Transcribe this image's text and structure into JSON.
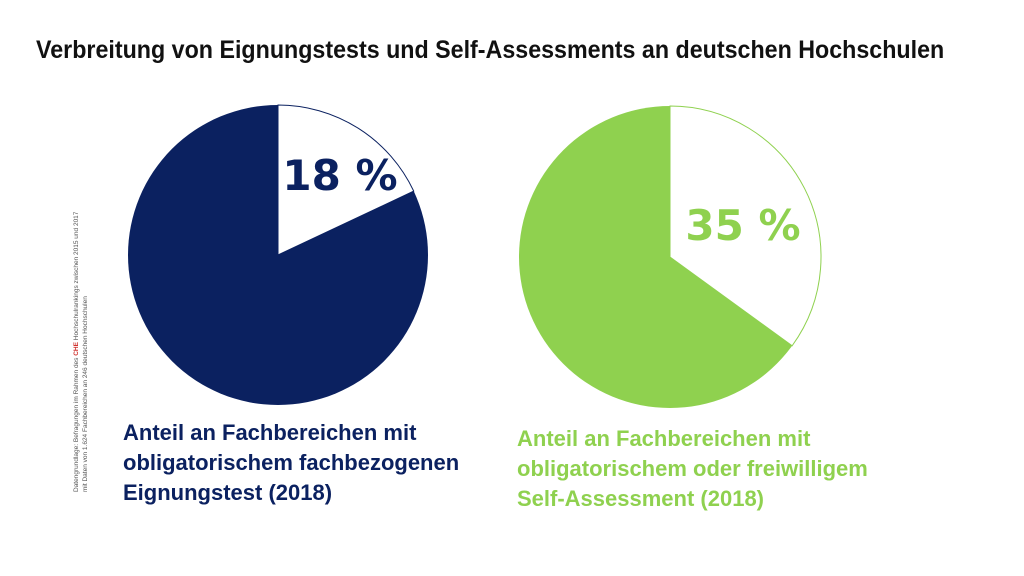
{
  "title": "Verbreitung von Eignungstests und Self-Assessments an deutschen Hochschulen",
  "source": {
    "line1_pre": "Datengrundlage: Befragungen im Rahmen des ",
    "line1_brand": "CHE",
    "line1_post": " Hochschulrankings zwischen 2015 und 2017",
    "line2": "mit Daten von 1.624 Fachbereichen an 246 deutschen Hochschulen"
  },
  "colors": {
    "navy": "#0b2160",
    "green": "#8fd14f",
    "white": "#ffffff"
  },
  "chart_data": [
    {
      "type": "pie",
      "value_percent": 18,
      "label": "18 %",
      "caption": [
        "Anteil an Fachbereichen mit",
        "obligatorischem fachbezogenen",
        "Eignungstest (2018)"
      ]
    },
    {
      "type": "pie",
      "value_percent": 35,
      "label": "35 %",
      "caption": [
        "Anteil an Fachbereichen mit",
        "obligatorischem oder freiwilligem",
        "Self-Assessment (2018)"
      ]
    }
  ]
}
